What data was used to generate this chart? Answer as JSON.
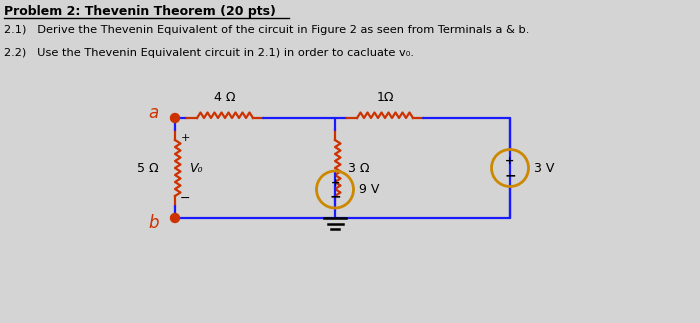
{
  "title_line1": "Problem 2: Thevenin Theorem (20 pts)",
  "text_line2": "2.1)   Derive the Thevenin Equivalent of the circuit in Figure 2 as seen from Terminals a & b.",
  "text_line3": "2.2)   Use the Thevenin Equivalent circuit in 2.1) in order to cacluate v₀.",
  "bg_color": "#d4d4d4",
  "wire_color": "#1a1aff",
  "resistor_color": "#cc3300",
  "source_color": "#cc8800",
  "terminal_color": "#cc3300",
  "node_a_label": "a",
  "node_b_label": "b",
  "r1_label": "4 Ω",
  "r2_label": "1Ω",
  "r3_label": "3 Ω",
  "r4_label": "5 Ω",
  "v0_label": "V₀",
  "v1_label": "9 V",
  "v2_label": "3 V"
}
